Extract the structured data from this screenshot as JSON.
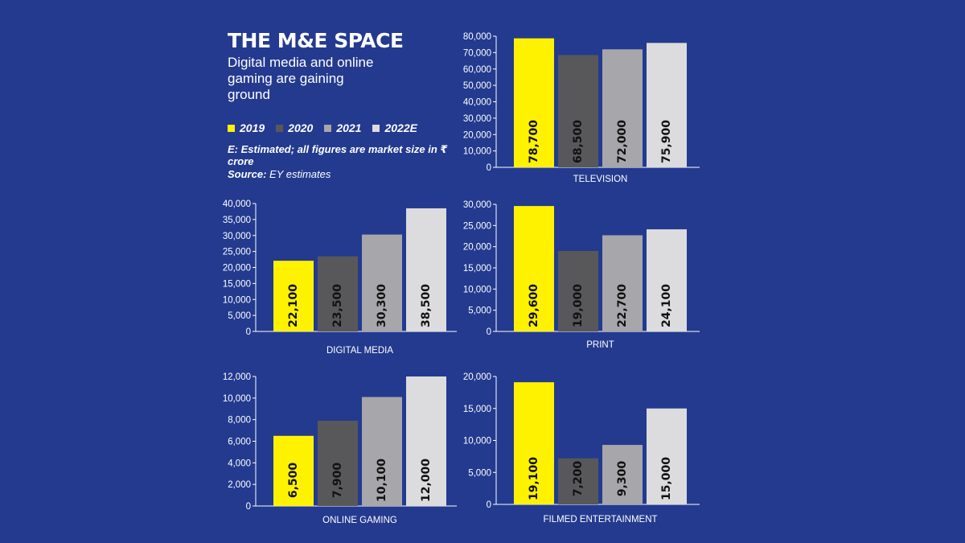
{
  "header": {
    "title": "THE M&E SPACE",
    "subtitle": "Digital media and online gaming are gaining ground"
  },
  "legend": [
    {
      "label": "2019",
      "color": "#fff200"
    },
    {
      "label": "2020",
      "color": "#58585a"
    },
    {
      "label": "2021",
      "color": "#a7a6aa"
    },
    {
      "label": "2022E",
      "color": "#dcdcde"
    }
  ],
  "note": "E: Estimated; all figures are market size in ₹ crore",
  "source": {
    "label": "Source:",
    "text": " EY estimates"
  },
  "chart_data": [
    {
      "type": "bar",
      "title": "TELEVISION",
      "categories": [
        "2019",
        "2020",
        "2021",
        "2022E"
      ],
      "values": [
        78700,
        68500,
        72000,
        75900
      ],
      "value_labels": [
        "78,700",
        "68,500",
        "72,000",
        "75,900"
      ],
      "ylim": [
        0,
        80000
      ],
      "yticks": [
        "0",
        "10,000",
        "20,000",
        "30,000",
        "40,000",
        "50,000",
        "60,000",
        "70,000",
        "80,000"
      ]
    },
    {
      "type": "bar",
      "title": "DIGITAL MEDIA",
      "categories": [
        "2019",
        "2020",
        "2021",
        "2022E"
      ],
      "values": [
        22100,
        23500,
        30300,
        38500
      ],
      "value_labels": [
        "22,100",
        "23,500",
        "30,300",
        "38,500"
      ],
      "ylim": [
        0,
        40000
      ],
      "yticks": [
        "0",
        "5,000",
        "10,000",
        "15,000",
        "20,000",
        "25,000",
        "30,000",
        "35,000",
        "40,000"
      ]
    },
    {
      "type": "bar",
      "title": "PRINT",
      "categories": [
        "2019",
        "2020",
        "2021",
        "2022E"
      ],
      "values": [
        29600,
        19000,
        22700,
        24100
      ],
      "value_labels": [
        "29,600",
        "19,000",
        "22,700",
        "24,100"
      ],
      "ylim": [
        0,
        30000
      ],
      "yticks": [
        "0",
        "5,000",
        "10,000",
        "15,000",
        "20,000",
        "25,000",
        "30,000"
      ]
    },
    {
      "type": "bar",
      "title": "ONLINE GAMING",
      "categories": [
        "2019",
        "2020",
        "2021",
        "2022E"
      ],
      "values": [
        6500,
        7900,
        10100,
        12000
      ],
      "value_labels": [
        "6,500",
        "7,900",
        "10,100",
        "12,000"
      ],
      "ylim": [
        0,
        12000
      ],
      "yticks": [
        "0",
        "2,000",
        "4,000",
        "6,000",
        "8,000",
        "10,000",
        "12,000"
      ]
    },
    {
      "type": "bar",
      "title": "FILMED ENTERTAINMENT",
      "categories": [
        "2019",
        "2020",
        "2021",
        "2022E"
      ],
      "values": [
        19100,
        7200,
        9300,
        15000
      ],
      "value_labels": [
        "19,100",
        "7,200",
        "9,300",
        "15,000"
      ],
      "ylim": [
        0,
        20000
      ],
      "yticks": [
        "0",
        "5,000",
        "10,000",
        "15,000",
        "20,000"
      ]
    }
  ]
}
